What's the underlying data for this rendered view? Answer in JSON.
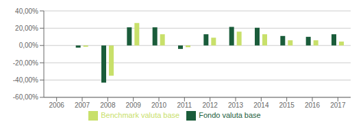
{
  "chart_data": {
    "type": "bar",
    "categories": [
      "2006",
      "2007",
      "2008",
      "2009",
      "2010",
      "2011",
      "2012",
      "2013",
      "2014",
      "2015",
      "2016",
      "2017"
    ],
    "series": [
      {
        "name": "Fondo valuta base",
        "color": "#1a5c3a",
        "values": [
          0.0,
          -2.5,
          -43.0,
          21.0,
          21.0,
          -4.0,
          13.0,
          21.5,
          20.5,
          11.0,
          10.0,
          13.0
        ]
      },
      {
        "name": "Benchmark valuta base",
        "color": "#c8e06a",
        "values": [
          0.0,
          -1.5,
          -35.0,
          26.0,
          13.0,
          -2.0,
          9.0,
          16.0,
          13.0,
          6.0,
          6.0,
          4.5
        ]
      }
    ],
    "ylim": [
      -60,
      40
    ],
    "yticks": [
      {
        "value": -60,
        "label": "-60,00%"
      },
      {
        "value": -40,
        "label": "-40,00%"
      },
      {
        "value": -20,
        "label": "-20,00%"
      },
      {
        "value": 0,
        "label": "0,00%"
      },
      {
        "value": 20,
        "label": "20,00%"
      },
      {
        "value": 40,
        "label": "40,00%"
      }
    ],
    "grid": true,
    "legend": "bottom"
  }
}
